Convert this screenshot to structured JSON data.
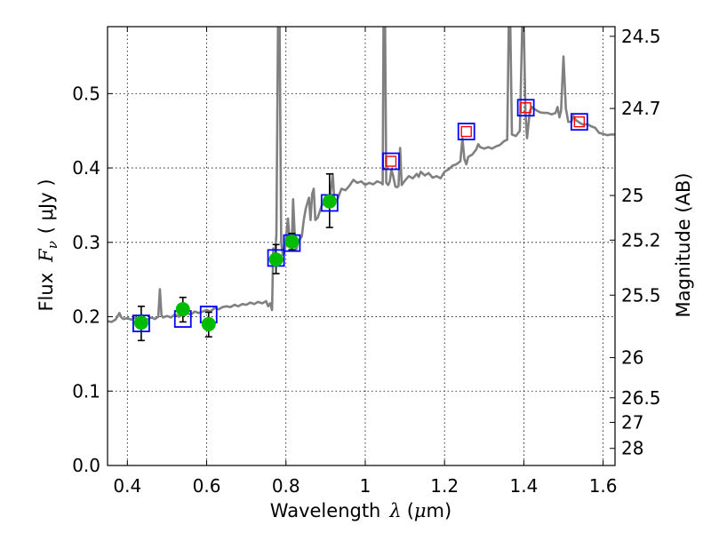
{
  "chart_data": {
    "type": "scatter",
    "xlabel_prefix": "Wavelength",
    "xlabel_symbol": "λ",
    "xlabel_unit_open": "(",
    "xlabel_unit_mu": "μ",
    "xlabel_unit_rest": "m)",
    "ylabel_prefix": "Flux",
    "ylabel_symbol": "F",
    "ylabel_subscript": "ν",
    "ylabel_unit": "( μJy )",
    "y2label": "Magnitude (AB)",
    "xlim": [
      0.35,
      1.63
    ],
    "ylim": [
      0.0,
      0.59
    ],
    "grid": true,
    "x_ticks": [
      0.4,
      0.6,
      0.8,
      1.0,
      1.2,
      1.4,
      1.6
    ],
    "x_tick_labels": [
      "0.4",
      "0.6",
      "0.8",
      "1",
      "1.2",
      "1.4",
      "1.6"
    ],
    "y_ticks": [
      0.0,
      0.1,
      0.2,
      0.3,
      0.4,
      0.5
    ],
    "y_tick_labels": [
      "0.0",
      "0.1",
      "0.2",
      "0.3",
      "0.4",
      "0.5"
    ],
    "y2_ticks": [
      {
        "label": "24.5",
        "flux": 0.577
      },
      {
        "label": "24.7",
        "flux": 0.48
      },
      {
        "label": "25",
        "flux": 0.363
      },
      {
        "label": "25.2",
        "flux": 0.303
      },
      {
        "label": "25.5",
        "flux": 0.229
      },
      {
        "label": "26",
        "flux": 0.145
      },
      {
        "label": "26.5",
        "flux": 0.091
      },
      {
        "label": "27",
        "flux": 0.058
      },
      {
        "label": "28",
        "flux": 0.023
      }
    ],
    "series": [
      {
        "kind": "model_spectrum",
        "color": "#808080",
        "points": [
          [
            0.35,
            0.194
          ],
          [
            0.36,
            0.193
          ],
          [
            0.37,
            0.196
          ],
          [
            0.38,
            0.205
          ],
          [
            0.385,
            0.199
          ],
          [
            0.39,
            0.197
          ],
          [
            0.4,
            0.198
          ],
          [
            0.41,
            0.196
          ],
          [
            0.42,
            0.199
          ],
          [
            0.43,
            0.194
          ],
          [
            0.44,
            0.198
          ],
          [
            0.45,
            0.196
          ],
          [
            0.46,
            0.199
          ],
          [
            0.47,
            0.197
          ],
          [
            0.478,
            0.2
          ],
          [
            0.482,
            0.237
          ],
          [
            0.486,
            0.202
          ],
          [
            0.49,
            0.199
          ],
          [
            0.5,
            0.201
          ],
          [
            0.51,
            0.199
          ],
          [
            0.52,
            0.203
          ],
          [
            0.53,
            0.2
          ],
          [
            0.54,
            0.203
          ],
          [
            0.55,
            0.205
          ],
          [
            0.56,
            0.203
          ],
          [
            0.57,
            0.207
          ],
          [
            0.58,
            0.205
          ],
          [
            0.59,
            0.207
          ],
          [
            0.6,
            0.209
          ],
          [
            0.61,
            0.207
          ],
          [
            0.62,
            0.212
          ],
          [
            0.63,
            0.21
          ],
          [
            0.64,
            0.213
          ],
          [
            0.65,
            0.214
          ],
          [
            0.66,
            0.213
          ],
          [
            0.67,
            0.216
          ],
          [
            0.68,
            0.214
          ],
          [
            0.69,
            0.217
          ],
          [
            0.7,
            0.216
          ],
          [
            0.71,
            0.219
          ],
          [
            0.72,
            0.217
          ],
          [
            0.73,
            0.22
          ],
          [
            0.74,
            0.218
          ],
          [
            0.75,
            0.221
          ],
          [
            0.755,
            0.214
          ],
          [
            0.76,
            0.218
          ],
          [
            0.765,
            0.209
          ],
          [
            0.768,
            0.292
          ],
          [
            0.772,
            0.28
          ],
          [
            0.776,
            0.31
          ],
          [
            0.78,
            0.59
          ],
          [
            0.784,
            0.59
          ],
          [
            0.788,
            0.3
          ],
          [
            0.792,
            0.283
          ],
          [
            0.796,
            0.285
          ],
          [
            0.8,
            0.303
          ],
          [
            0.805,
            0.332
          ],
          [
            0.81,
            0.297
          ],
          [
            0.815,
            0.3
          ],
          [
            0.818,
            0.358
          ],
          [
            0.822,
            0.31
          ],
          [
            0.826,
            0.29
          ],
          [
            0.83,
            0.3
          ],
          [
            0.84,
            0.308
          ],
          [
            0.845,
            0.33
          ],
          [
            0.85,
            0.345
          ],
          [
            0.855,
            0.355
          ],
          [
            0.858,
            0.36
          ],
          [
            0.862,
            0.33
          ],
          [
            0.866,
            0.365
          ],
          [
            0.87,
            0.372
          ],
          [
            0.874,
            0.33
          ],
          [
            0.88,
            0.333
          ],
          [
            0.89,
            0.349
          ],
          [
            0.9,
            0.356
          ],
          [
            0.91,
            0.354
          ],
          [
            0.918,
            0.392
          ],
          [
            0.922,
            0.356
          ],
          [
            0.93,
            0.358
          ],
          [
            0.94,
            0.372
          ],
          [
            0.95,
            0.37
          ],
          [
            0.96,
            0.376
          ],
          [
            0.97,
            0.384
          ],
          [
            0.98,
            0.38
          ],
          [
            0.99,
            0.382
          ],
          [
            1.0,
            0.377
          ],
          [
            1.01,
            0.38
          ],
          [
            1.02,
            0.378
          ],
          [
            1.03,
            0.382
          ],
          [
            1.04,
            0.38
          ],
          [
            1.044,
            0.378
          ],
          [
            1.046,
            0.59
          ],
          [
            1.05,
            0.59
          ],
          [
            1.053,
            0.38
          ],
          [
            1.058,
            0.377
          ],
          [
            1.062,
            0.382
          ],
          [
            1.066,
            0.398
          ],
          [
            1.07,
            0.39
          ],
          [
            1.076,
            0.375
          ],
          [
            1.08,
            0.374
          ],
          [
            1.084,
            0.376
          ],
          [
            1.088,
            0.427
          ],
          [
            1.092,
            0.377
          ],
          [
            1.1,
            0.383
          ],
          [
            1.11,
            0.389
          ],
          [
            1.12,
            0.386
          ],
          [
            1.13,
            0.392
          ],
          [
            1.135,
            0.388
          ],
          [
            1.14,
            0.395
          ],
          [
            1.15,
            0.39
          ],
          [
            1.16,
            0.393
          ],
          [
            1.17,
            0.387
          ],
          [
            1.18,
            0.389
          ],
          [
            1.19,
            0.386
          ],
          [
            1.2,
            0.395
          ],
          [
            1.21,
            0.398
          ],
          [
            1.22,
            0.403
          ],
          [
            1.23,
            0.405
          ],
          [
            1.24,
            0.409
          ],
          [
            1.245,
            0.44
          ],
          [
            1.25,
            0.412
          ],
          [
            1.255,
            0.405
          ],
          [
            1.26,
            0.415
          ],
          [
            1.27,
            0.418
          ],
          [
            1.28,
            0.425
          ],
          [
            1.285,
            0.432
          ],
          [
            1.29,
            0.428
          ],
          [
            1.3,
            0.426
          ],
          [
            1.31,
            0.428
          ],
          [
            1.32,
            0.426
          ],
          [
            1.33,
            0.429
          ],
          [
            1.34,
            0.431
          ],
          [
            1.35,
            0.436
          ],
          [
            1.358,
            0.438
          ],
          [
            1.362,
            0.59
          ],
          [
            1.366,
            0.59
          ],
          [
            1.37,
            0.445
          ],
          [
            1.38,
            0.443
          ],
          [
            1.39,
            0.45
          ],
          [
            1.396,
            0.59
          ],
          [
            1.4,
            0.59
          ],
          [
            1.404,
            0.475
          ],
          [
            1.408,
            0.44
          ],
          [
            1.415,
            0.476
          ],
          [
            1.42,
            0.482
          ],
          [
            1.43,
            0.478
          ],
          [
            1.44,
            0.475
          ],
          [
            1.45,
            0.474
          ],
          [
            1.46,
            0.474
          ],
          [
            1.47,
            0.472
          ],
          [
            1.48,
            0.474
          ],
          [
            1.485,
            0.482
          ],
          [
            1.49,
            0.468
          ],
          [
            1.494,
            0.477
          ],
          [
            1.5,
            0.55
          ],
          [
            1.506,
            0.48
          ],
          [
            1.512,
            0.462
          ],
          [
            1.52,
            0.462
          ],
          [
            1.525,
            0.47
          ],
          [
            1.53,
            0.465
          ],
          [
            1.54,
            0.461
          ],
          [
            1.55,
            0.458
          ],
          [
            1.56,
            0.459
          ],
          [
            1.57,
            0.456
          ],
          [
            1.58,
            0.454
          ],
          [
            1.59,
            0.447
          ],
          [
            1.6,
            0.446
          ],
          [
            1.61,
            0.444
          ],
          [
            1.62,
            0.445
          ],
          [
            1.63,
            0.445
          ]
        ]
      },
      {
        "kind": "model_photometry",
        "marker": "square",
        "color": "#0000ff",
        "points": [
          [
            0.435,
            0.191
          ],
          [
            0.54,
            0.197
          ],
          [
            0.605,
            0.203
          ],
          [
            0.775,
            0.279
          ],
          [
            0.815,
            0.299
          ],
          [
            0.91,
            0.353
          ],
          [
            1.065,
            0.409
          ],
          [
            1.255,
            0.449
          ],
          [
            1.405,
            0.481
          ],
          [
            1.54,
            0.462
          ]
        ]
      },
      {
        "kind": "observed_nir",
        "marker": "small-square",
        "color": "#ff0000",
        "points": [
          [
            1.065,
            0.409
          ],
          [
            1.255,
            0.449
          ],
          [
            1.405,
            0.481
          ],
          [
            1.54,
            0.462
          ]
        ]
      },
      {
        "kind": "observed_optical",
        "marker": "circle",
        "color": "#00bb00",
        "points": [
          {
            "x": 0.435,
            "y": 0.192,
            "lo": 0.168,
            "hi": 0.214
          },
          {
            "x": 0.54,
            "y": 0.21,
            "lo": 0.193,
            "hi": 0.226
          },
          {
            "x": 0.605,
            "y": 0.19,
            "lo": 0.173,
            "hi": 0.206
          },
          {
            "x": 0.775,
            "y": 0.277,
            "lo": 0.258,
            "hi": 0.297
          },
          {
            "x": 0.815,
            "y": 0.301,
            "lo": 0.29,
            "hi": 0.312
          },
          {
            "x": 0.91,
            "y": 0.355,
            "lo": 0.32,
            "hi": 0.392
          }
        ]
      }
    ]
  }
}
